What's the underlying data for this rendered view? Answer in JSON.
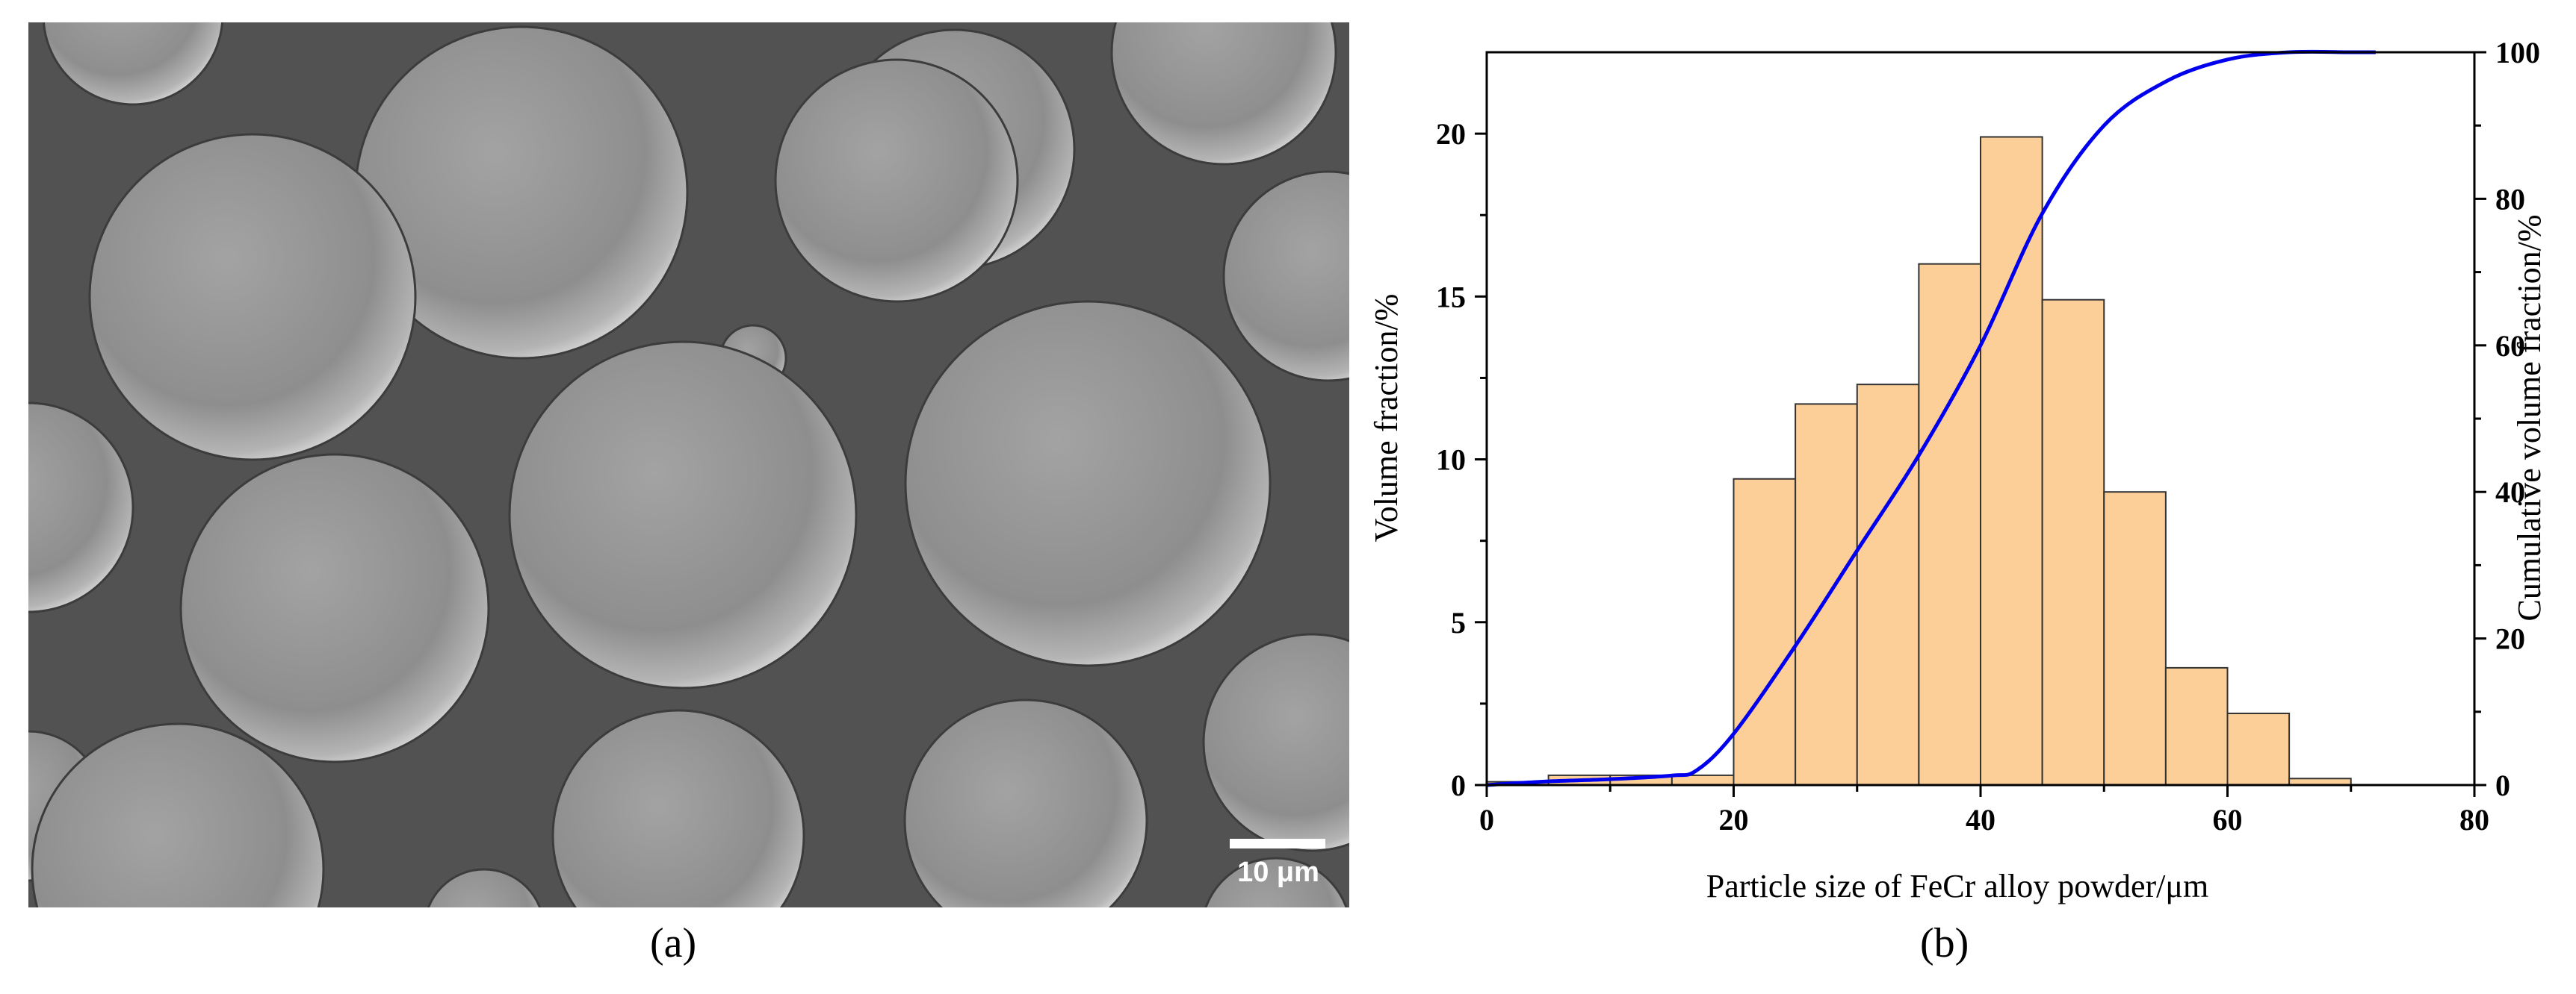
{
  "panel_a": {
    "label": "(a)",
    "scale_bar_text": "10 μm"
  },
  "panel_b": {
    "label": "(b)"
  },
  "chart_data": {
    "type": "bar",
    "x_label": "Particle size of FeCr alloy powder/μm",
    "y_label_left": "Volume fraction/%",
    "y_label_right": "Cumulative volume fraction/%",
    "xlim": [
      0,
      80
    ],
    "ylim_left": [
      0,
      22.5
    ],
    "ylim_right": [
      0,
      100
    ],
    "x_ticks": [
      0,
      20,
      40,
      60,
      80
    ],
    "y_ticks_left": [
      0,
      5,
      10,
      15,
      20
    ],
    "y_ticks_right": [
      0,
      20,
      40,
      60,
      80,
      100
    ],
    "grid": false,
    "series": [
      {
        "kind": "histogram",
        "bin_width": 5,
        "bins": [
          {
            "start": 0,
            "value": 0.1
          },
          {
            "start": 5,
            "value": 0.3
          },
          {
            "start": 10,
            "value": 0.3
          },
          {
            "start": 15,
            "value": 0.3
          },
          {
            "start": 20,
            "value": 9.4
          },
          {
            "start": 25,
            "value": 11.7
          },
          {
            "start": 30,
            "value": 12.3
          },
          {
            "start": 35,
            "value": 16.0
          },
          {
            "start": 40,
            "value": 19.9
          },
          {
            "start": 45,
            "value": 14.9
          },
          {
            "start": 50,
            "value": 9.0
          },
          {
            "start": 55,
            "value": 3.6
          },
          {
            "start": 60,
            "value": 2.2
          },
          {
            "start": 65,
            "value": 0.2
          }
        ]
      },
      {
        "kind": "line",
        "axis": "right",
        "x": [
          0,
          5,
          10,
          15,
          17,
          20,
          25,
          30,
          35,
          40,
          45,
          50,
          55,
          60,
          65,
          70,
          72
        ],
        "values": [
          0,
          0.5,
          0.8,
          1.3,
          2,
          7,
          19,
          32,
          45,
          60,
          78,
          90,
          96,
          99,
          100,
          100,
          100
        ]
      }
    ],
    "colors": {
      "bar_fill": "#fdcf98",
      "bar_stroke": "#333333",
      "line": "#0000ee",
      "axis": "#000000"
    }
  }
}
